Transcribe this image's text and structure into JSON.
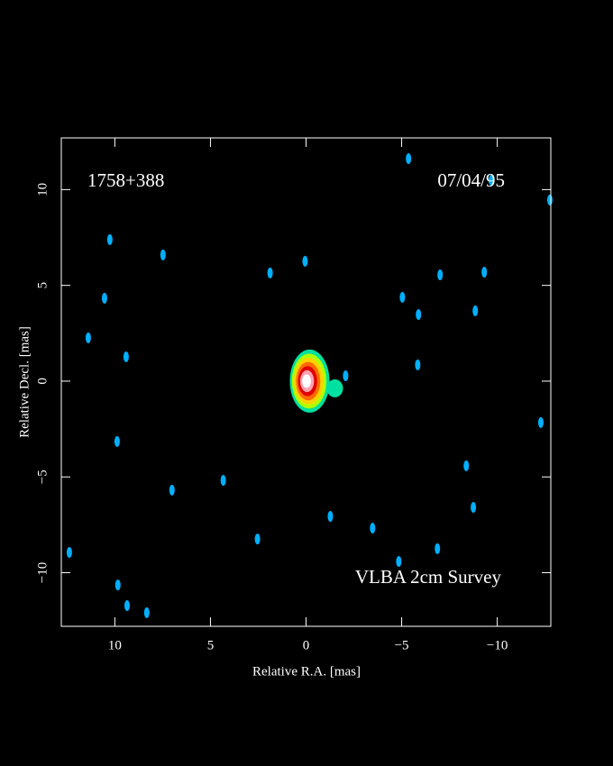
{
  "chart_data": {
    "type": "image",
    "source": "1758+388",
    "date": "07/04/95",
    "annotation": "VLBA 2cm Survey",
    "x_label": "Relative R.A. [mas]",
    "y_label": "Relative Decl. [mas]",
    "xlim": [
      12.8,
      -12.8
    ],
    "ylim": [
      -12.8,
      12.7
    ],
    "xticks": [
      10,
      5,
      0,
      {
        "value": -5,
        "label": "−5"
      },
      {
        "value": -10,
        "label": "−10"
      }
    ],
    "yticks": [
      {
        "value": -10,
        "label": "−10"
      },
      {
        "value": -5,
        "label": "−5"
      },
      0,
      5,
      10
    ],
    "core": {
      "x": 0,
      "y": 0,
      "colors": [
        "#00e0a0",
        "#b0ff00",
        "#ffd000",
        "#ff6a00",
        "#e00000",
        "#ffa0b0",
        "#ffffff"
      ]
    },
    "features": {
      "color": "#00b0ff",
      "x": [
        10.26,
        7.48,
        10.54,
        9.41,
        1.88,
        0.05,
        9.88,
        7.01,
        4.33,
        2.54,
        9.84,
        9.36,
        8.33,
        12.38,
        -1.27,
        -3.48,
        -4.85,
        -6.87,
        -8.75,
        -8.38,
        -5.84,
        -5.88,
        -5.04,
        -7.01,
        -8.85,
        -9.32,
        -12.28,
        -12.75,
        -9.69,
        -5.36,
        -2.07,
        -1.6,
        11.39
      ],
      "y": [
        7.39,
        6.59,
        4.33,
        1.27,
        5.65,
        6.26,
        -3.15,
        -5.69,
        -5.18,
        -8.24,
        -10.64,
        -11.72,
        -12.09,
        -8.94,
        -7.06,
        -7.67,
        -9.41,
        -8.75,
        -6.59,
        -4.42,
        0.85,
        3.48,
        4.38,
        5.55,
        3.67,
        5.69,
        -2.16,
        9.46,
        10.49,
        11.62,
        0.28,
        -0.33,
        2.26
      ]
    }
  }
}
